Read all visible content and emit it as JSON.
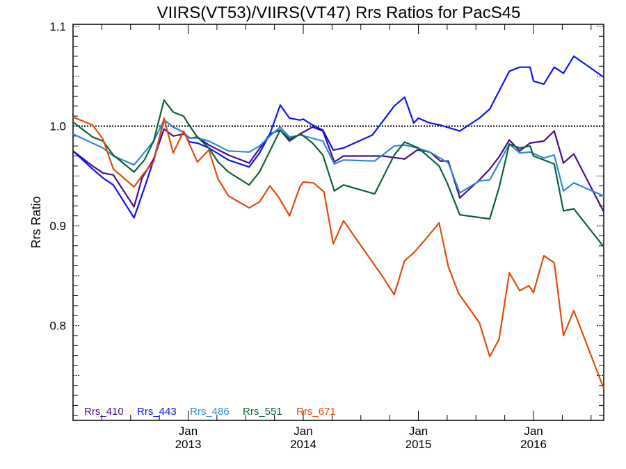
{
  "chart_data": {
    "type": "line",
    "title": "VIIRS(VT53)/VIIRS(VT47)  Rrs Ratios for PacS45",
    "xlabel": "",
    "ylabel": "Rrs Ratio",
    "xlim": [
      2012.0,
      2016.61
    ],
    "ylim": [
      0.705,
      1.102
    ],
    "reference_line": 1.0,
    "grid": false,
    "legend_placement": "bottom-left",
    "x_ticks": [
      {
        "value": 2013.0,
        "label_month": "Jan",
        "label_year": "2013"
      },
      {
        "value": 2014.0,
        "label_month": "Jan",
        "label_year": "2014"
      },
      {
        "value": 2015.0,
        "label_month": "Jan",
        "label_year": "2015"
      },
      {
        "value": 2016.0,
        "label_month": "Jan",
        "label_year": "2016"
      }
    ],
    "y_ticks": [
      {
        "value": 0.8,
        "label": "0.8"
      },
      {
        "value": 0.9,
        "label": "0.9"
      },
      {
        "value": 1.0,
        "label": "1.0"
      },
      {
        "value": 1.1,
        "label": "1.1"
      }
    ],
    "series": [
      {
        "name": "Rrs_410",
        "color": "#4b0a8c",
        "x": [
          2012.0,
          2012.17,
          2012.26,
          2012.35,
          2012.53,
          2012.6,
          2012.7,
          2012.79,
          2012.87,
          2012.96,
          2013.02,
          2013.08,
          2013.18,
          2013.35,
          2013.53,
          2013.71,
          2013.8,
          2013.88,
          2013.97,
          2014.08,
          2014.17,
          2014.27,
          2014.35,
          2014.69,
          2014.88,
          2014.99,
          2015.1,
          2015.19,
          2015.26,
          2015.36,
          2015.53,
          2015.62,
          2015.7,
          2015.79,
          2015.88,
          2015.97,
          2016.09,
          2016.18,
          2016.26,
          2016.35,
          2016.61
        ],
        "y": [
          0.975,
          0.96,
          0.953,
          0.951,
          0.919,
          0.948,
          0.967,
          0.997,
          0.99,
          0.992,
          0.988,
          0.989,
          0.981,
          0.971,
          0.963,
          0.992,
          0.996,
          0.985,
          0.992,
          0.999,
          0.995,
          0.964,
          0.97,
          0.97,
          0.967,
          0.976,
          0.974,
          0.965,
          0.965,
          0.928,
          0.946,
          0.957,
          0.969,
          0.986,
          0.975,
          0.983,
          0.985,
          0.995,
          0.963,
          0.972,
          0.914
        ]
      },
      {
        "name": "Rrs_443",
        "color": "#0a14f0",
        "x": [
          2012.0,
          2012.17,
          2012.26,
          2012.35,
          2012.53,
          2012.62,
          2012.7,
          2012.79,
          2012.87,
          2012.96,
          2013.01,
          2013.08,
          2013.18,
          2013.35,
          2013.53,
          2013.62,
          2013.71,
          2013.8,
          2013.88,
          2013.97,
          2014.0,
          2014.08,
          2014.17,
          2014.26,
          2014.35,
          2014.6,
          2014.79,
          2014.88,
          2014.96,
          2015.0,
          2015.1,
          2015.19,
          2015.36,
          2015.53,
          2015.62,
          2015.79,
          2015.88,
          2015.97,
          2016.0,
          2016.09,
          2016.18,
          2016.26,
          2016.35,
          2016.61
        ],
        "y": [
          0.975,
          0.957,
          0.948,
          0.941,
          0.908,
          0.938,
          0.966,
          1.006,
          0.999,
          0.994,
          0.984,
          0.983,
          0.978,
          0.966,
          0.959,
          0.973,
          0.992,
          1.021,
          1.008,
          1.006,
          1.007,
          1.001,
          0.996,
          0.976,
          0.978,
          0.991,
          1.02,
          1.029,
          1.003,
          1.008,
          1.003,
          1.001,
          0.995,
          1.008,
          1.017,
          1.055,
          1.059,
          1.059,
          1.045,
          1.042,
          1.059,
          1.053,
          1.07,
          1.049
        ]
      },
      {
        "name": "Rrs_486",
        "color": "#2b8bd0",
        "x": [
          2012.0,
          2012.26,
          2012.35,
          2012.53,
          2012.7,
          2012.79,
          2012.87,
          2012.96,
          2013.01,
          2013.08,
          2013.18,
          2013.35,
          2013.53,
          2013.62,
          2013.71,
          2013.8,
          2013.88,
          2013.98,
          2014.17,
          2014.27,
          2014.35,
          2014.62,
          2014.79,
          2014.88,
          2014.99,
          2015.1,
          2015.26,
          2015.36,
          2015.53,
          2015.62,
          2015.79,
          2015.88,
          2015.97,
          2016.09,
          2016.18,
          2016.26,
          2016.35,
          2016.61
        ],
        "y": [
          0.992,
          0.978,
          0.97,
          0.961,
          0.985,
          1.006,
          0.999,
          0.994,
          0.988,
          0.988,
          0.985,
          0.975,
          0.974,
          0.98,
          0.99,
          0.999,
          0.989,
          0.991,
          0.985,
          0.962,
          0.966,
          0.965,
          0.98,
          0.981,
          0.978,
          0.974,
          0.963,
          0.933,
          0.945,
          0.946,
          0.982,
          0.973,
          0.974,
          0.968,
          0.971,
          0.935,
          0.943,
          0.93
        ]
      },
      {
        "name": "Rrs_551",
        "color": "#0d6030",
        "x": [
          2012.0,
          2012.17,
          2012.26,
          2012.35,
          2012.53,
          2012.62,
          2012.7,
          2012.79,
          2012.87,
          2012.96,
          2013.02,
          2013.08,
          2013.18,
          2013.26,
          2013.35,
          2013.53,
          2013.62,
          2013.71,
          2013.8,
          2013.88,
          2013.98,
          2014.08,
          2014.17,
          2014.27,
          2014.35,
          2014.62,
          2014.79,
          2014.88,
          2015.0,
          2015.18,
          2015.25,
          2015.36,
          2015.62,
          2015.7,
          2015.79,
          2015.88,
          2015.97,
          2016.0,
          2016.18,
          2016.26,
          2016.35,
          2016.61
        ],
        "y": [
          1.004,
          0.989,
          0.985,
          0.971,
          0.954,
          0.966,
          0.985,
          1.026,
          1.014,
          1.01,
          0.999,
          0.989,
          0.978,
          0.964,
          0.954,
          0.941,
          0.954,
          0.975,
          0.996,
          0.987,
          0.992,
          0.983,
          0.971,
          0.935,
          0.941,
          0.932,
          0.971,
          0.984,
          0.978,
          0.96,
          0.943,
          0.911,
          0.907,
          0.938,
          0.982,
          0.978,
          0.98,
          0.97,
          0.962,
          0.915,
          0.917,
          0.879
        ]
      },
      {
        "name": "Rrs_671",
        "color": "#e04a0a",
        "x": [
          2012.0,
          2012.17,
          2012.26,
          2012.35,
          2012.53,
          2012.61,
          2012.7,
          2012.79,
          2012.87,
          2012.96,
          2013.08,
          2013.18,
          2013.26,
          2013.35,
          2013.53,
          2013.62,
          2013.71,
          2013.79,
          2013.88,
          2013.97,
          2014.0,
          2014.09,
          2014.18,
          2014.26,
          2014.35,
          2014.69,
          2014.79,
          2014.88,
          2014.96,
          2015.08,
          2015.18,
          2015.26,
          2015.35,
          2015.53,
          2015.62,
          2015.7,
          2015.79,
          2015.88,
          2015.96,
          2016.0,
          2016.09,
          2016.18,
          2016.26,
          2016.35,
          2016.61
        ],
        "y": [
          1.009,
          1.001,
          0.987,
          0.957,
          0.939,
          0.952,
          0.964,
          1.008,
          0.973,
          0.995,
          0.964,
          0.976,
          0.947,
          0.93,
          0.918,
          0.924,
          0.94,
          0.928,
          0.91,
          0.939,
          0.944,
          0.943,
          0.934,
          0.882,
          0.905,
          0.849,
          0.831,
          0.865,
          0.873,
          0.889,
          0.903,
          0.859,
          0.832,
          0.803,
          0.769,
          0.786,
          0.853,
          0.835,
          0.84,
          0.833,
          0.87,
          0.863,
          0.79,
          0.815,
          0.737
        ]
      }
    ]
  }
}
